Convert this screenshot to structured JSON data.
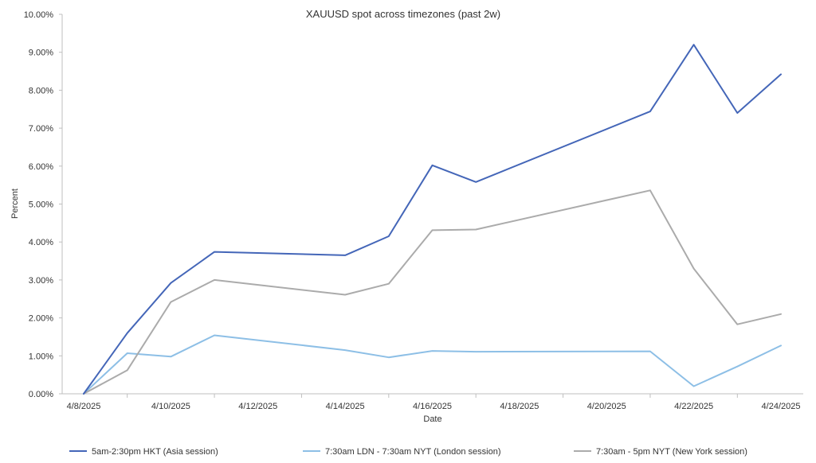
{
  "chart_data": {
    "type": "line",
    "title": "XAUUSD spot across timezones (past 2w)",
    "xlabel": "Date",
    "ylabel": "Percent",
    "x": [
      "4/8/2025",
      "4/9/2025",
      "4/10/2025",
      "4/11/2025",
      "4/14/2025",
      "4/15/2025",
      "4/16/2025",
      "4/17/2025",
      "4/21/2025",
      "4/22/2025",
      "4/23/2025",
      "4/24/2025"
    ],
    "x_tick_labels": [
      "4/8/2025",
      "4/10/2025",
      "4/12/2025",
      "4/14/2025",
      "4/16/2025",
      "4/18/2025",
      "4/20/2025",
      "4/22/2025",
      "4/24/2025"
    ],
    "x_range": [
      "4/8/2025",
      "4/24/2025"
    ],
    "y_tick_labels": [
      "0.00%",
      "1.00%",
      "2.00%",
      "3.00%",
      "4.00%",
      "5.00%",
      "6.00%",
      "7.00%",
      "8.00%",
      "9.00%",
      "10.00%"
    ],
    "ylim": [
      0,
      10
    ],
    "grid": false,
    "legend_position": "bottom",
    "series": [
      {
        "name": "5am-2:30pm HKT (Asia session)",
        "color": "#4466b8",
        "values": [
          0.0,
          1.6,
          2.92,
          3.74,
          3.65,
          4.15,
          6.02,
          5.58,
          7.44,
          9.2,
          7.4,
          8.42
        ]
      },
      {
        "name": "7:30am LDN - 7:30am NYT (London session)",
        "color": "#8dbfe6",
        "values": [
          0.0,
          1.07,
          0.98,
          1.54,
          1.15,
          0.96,
          1.13,
          1.11,
          1.12,
          0.2,
          0.72,
          1.27
        ]
      },
      {
        "name": "7:30am - 5pm NYT (New York session)",
        "color": "#ababab",
        "values": [
          0.0,
          0.62,
          2.42,
          3.0,
          2.61,
          2.9,
          4.31,
          4.33,
          5.36,
          3.3,
          1.83,
          2.1
        ]
      }
    ]
  }
}
